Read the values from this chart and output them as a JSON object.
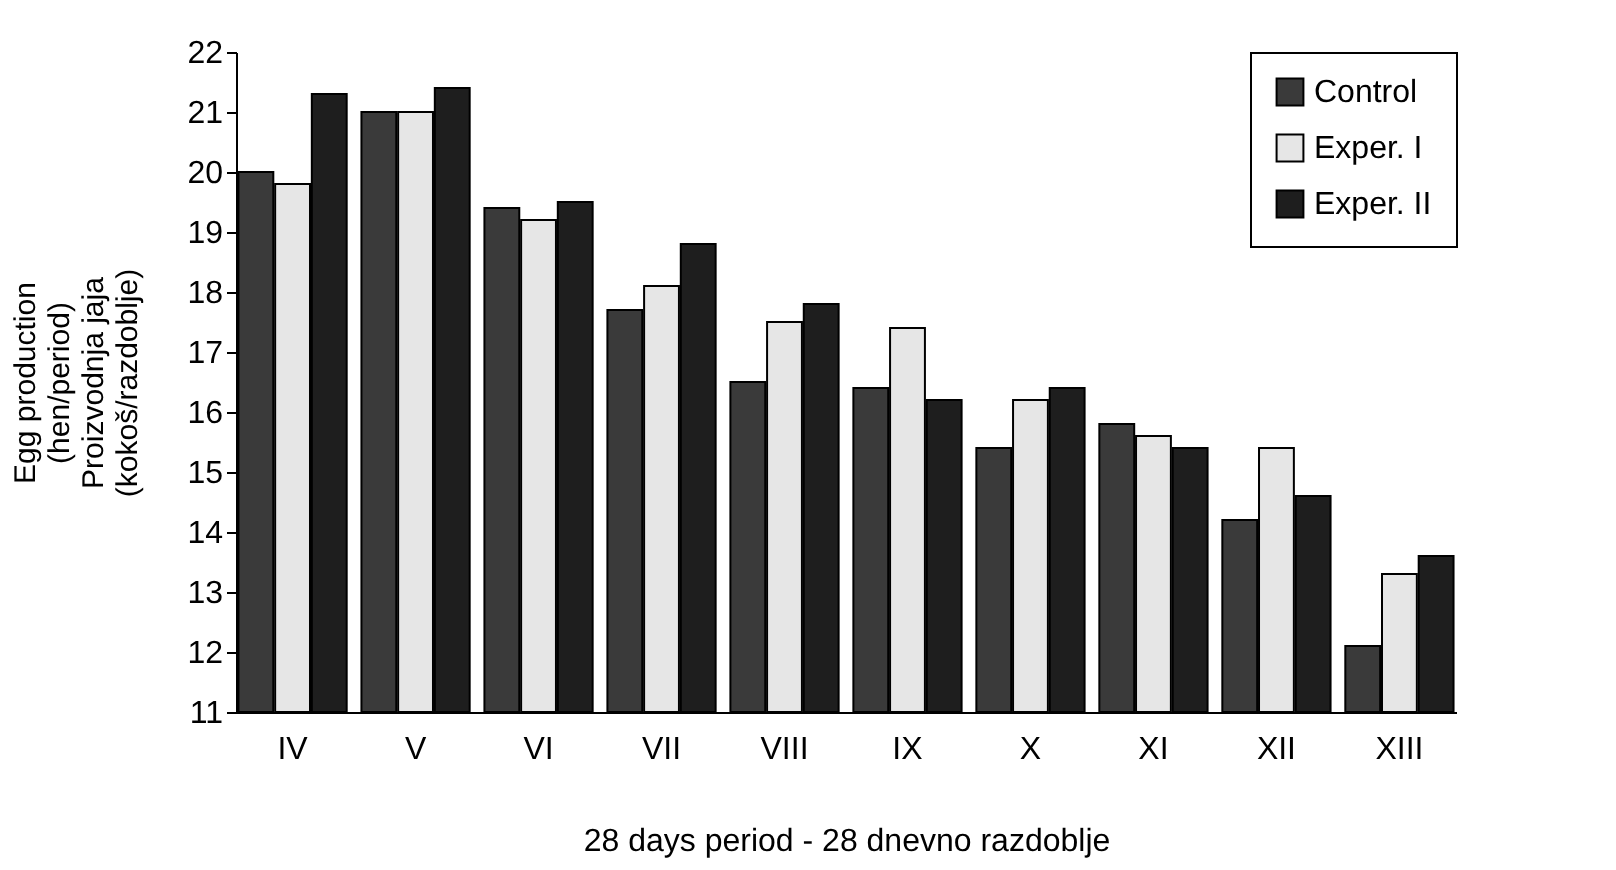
{
  "chart_data": {
    "type": "bar",
    "xlabel": "28 days period - 28 dnevno razdoblje",
    "ylabel": "Egg production\n(hen/period)\nProizvodnja jaja\n(kokoš/razdoblje)",
    "categories": [
      "IV",
      "V",
      "VI",
      "VII",
      "VIII",
      "IX",
      "X",
      "XI",
      "XII",
      "XIII"
    ],
    "series": [
      {
        "name": "Control",
        "color": "#3a3a3a",
        "values": [
          20.0,
          21.0,
          19.4,
          17.7,
          16.5,
          16.4,
          15.4,
          15.8,
          14.2,
          12.1
        ]
      },
      {
        "name": "Exper. I",
        "color": "#e6e6e6",
        "values": [
          19.8,
          21.0,
          19.2,
          18.1,
          17.5,
          17.4,
          16.2,
          15.6,
          15.4,
          13.3
        ]
      },
      {
        "name": "Exper. II",
        "color": "#1e1e1e",
        "values": [
          21.3,
          21.4,
          19.5,
          18.8,
          17.8,
          16.2,
          16.4,
          15.4,
          14.6,
          13.6
        ]
      }
    ],
    "ylim": [
      11,
      22
    ],
    "yticks": [
      11,
      12,
      13,
      14,
      15,
      16,
      17,
      18,
      19,
      20,
      21,
      22
    ],
    "grid": false,
    "legend": "top right"
  }
}
